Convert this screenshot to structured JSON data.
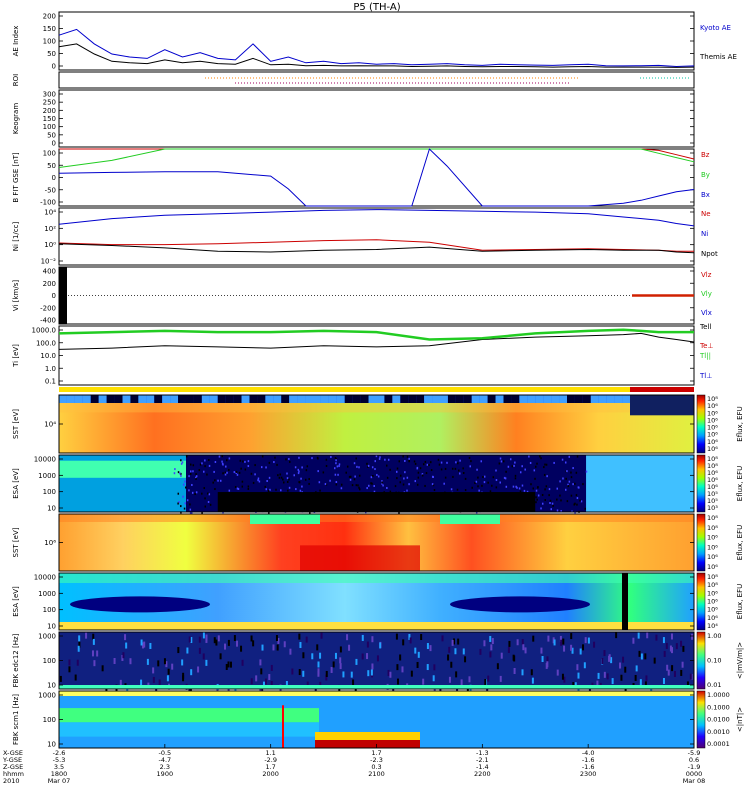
{
  "title": "P5 (TH-A)",
  "right_labels": {
    "ae": [
      "Kyoto AE",
      "Themis AE"
    ],
    "bfit": [
      "Bz",
      "By",
      "Bx"
    ],
    "density": [
      "Ne",
      "Ni",
      "Npot"
    ],
    "velocity": [
      "Vlz",
      "Vly",
      "Vlx"
    ],
    "temperature": [
      "Tell",
      "Te⊥",
      "Tl||",
      "Tl⊥"
    ]
  },
  "colorbars": {
    "sst_e": [
      "10⁸",
      "10⁶",
      "10⁶",
      "10⁶",
      "10⁶",
      "10⁶",
      "10⁶",
      "10⁶"
    ],
    "sst_e_label": "Eflux, EFU",
    "esa_e": [
      "10⁸",
      "10⁸",
      "10⁶",
      "10⁶",
      "10⁶",
      "10⁵",
      "10⁵",
      "10³"
    ],
    "esa_e_label": "Eflux, EFU",
    "sst_i": [
      "10⁸",
      "10⁸",
      "10⁶",
      "10⁶",
      "10⁶",
      "10⁶"
    ],
    "sst_i_label": "Eflux, EFU",
    "esa_i": [
      "10⁸",
      "10⁸",
      "10⁶",
      "10⁶",
      "10⁶",
      "10⁶",
      "10⁴"
    ],
    "esa_i_label": "Eflux, EFU",
    "fbk_b": [
      "1.00",
      "0.10",
      "0.01"
    ],
    "fbk_b_label": "<|mV/m|>",
    "fbk_e": [
      "1.0000",
      "0.1000",
      "0.0100",
      "0.0010",
      "0.0001"
    ],
    "fbk_e_label": "<|nT|>"
  },
  "chart_data": [
    {
      "panel": "AE Index",
      "type": "line",
      "ylabel": "AE Index",
      "yticks": [
        "200",
        "150",
        "100",
        "50",
        "0"
      ],
      "ylim": [
        0,
        200
      ],
      "x": [
        1800,
        1810,
        1820,
        1830,
        1840,
        1850,
        1900,
        1910,
        1920,
        1930,
        1940,
        1950,
        2000,
        2010,
        2020,
        2030,
        2040,
        2050,
        2100,
        2110,
        2120,
        2130,
        2140,
        2150,
        2200,
        2210,
        2220,
        2230,
        2240,
        2250,
        2300,
        2310,
        2320,
        2330,
        2340,
        2350,
        2400
      ],
      "series": [
        {
          "name": "Kyoto AE",
          "values": [
            120,
            140,
            90,
            55,
            45,
            40,
            70,
            45,
            60,
            40,
            35,
            90,
            30,
            45,
            25,
            30,
            22,
            25,
            20,
            22,
            18,
            20,
            22,
            18,
            16,
            20,
            18,
            17,
            16,
            18,
            20,
            15,
            14,
            15,
            16,
            12,
            14
          ]
        },
        {
          "name": "Themis AE",
          "values": [
            80,
            90,
            55,
            30,
            25,
            22,
            35,
            25,
            30,
            22,
            20,
            40,
            18,
            20,
            15,
            16,
            14,
            15,
            14,
            14,
            12,
            13,
            14,
            12,
            11,
            12,
            12,
            11,
            10,
            11,
            12,
            10,
            10,
            10,
            10,
            9,
            10
          ]
        }
      ]
    },
    {
      "panel": "ROI",
      "type": "line",
      "ylabel": "ROI"
    },
    {
      "panel": "Keogram",
      "type": "line",
      "ylabel": "Keogram",
      "yticks": [
        "300",
        "250",
        "200",
        "150",
        "100",
        "50",
        "0"
      ],
      "ylim": [
        0,
        300
      ]
    },
    {
      "panel": "B_FIT",
      "type": "line",
      "ylabel": "B FIT GSE [nT]",
      "yticks": [
        "100",
        "50",
        "0",
        "-50",
        "-100"
      ],
      "ylim": [
        -100,
        100
      ],
      "x": [
        1800,
        1830,
        1900,
        1930,
        2000,
        2010,
        2020,
        2030,
        2040,
        2100,
        2110,
        2120,
        2130,
        2140,
        2200,
        2230,
        2300,
        2320,
        2330,
        2340,
        2350,
        2400
      ],
      "series": [
        {
          "name": "Bz",
          "values": [
            100,
            100,
            100,
            100,
            100,
            100,
            100,
            100,
            100,
            100,
            100,
            100,
            100,
            100,
            100,
            100,
            100,
            100,
            100,
            95,
            80,
            65
          ]
        },
        {
          "name": "By",
          "values": [
            35,
            60,
            100,
            100,
            100,
            100,
            100,
            100,
            100,
            100,
            100,
            100,
            100,
            100,
            100,
            100,
            100,
            100,
            100,
            85,
            70,
            55
          ]
        },
        {
          "name": "Bx",
          "values": [
            15,
            18,
            20,
            20,
            5,
            -40,
            -100,
            -100,
            -100,
            -100,
            -100,
            -100,
            100,
            40,
            -100,
            -100,
            -100,
            -90,
            -80,
            -65,
            -50,
            -42
          ]
        }
      ]
    },
    {
      "panel": "Density",
      "type": "line",
      "ylabel": "Ni [1/cc]",
      "yticks": [
        "10⁴",
        "10²",
        "10⁰",
        "10⁻²"
      ],
      "ylim": [
        -2.5,
        4.5
      ],
      "x": [
        1800,
        1830,
        1900,
        1930,
        2000,
        2030,
        2100,
        2130,
        2200,
        2230,
        2300,
        2320,
        2340,
        2350,
        2400
      ],
      "series": [
        {
          "name": "Ne",
          "values": [
            0.2,
            0.0,
            0.0,
            0.1,
            0.3,
            0.5,
            0.6,
            0.3,
            -0.7,
            -0.6,
            -0.5,
            -0.6,
            -0.7,
            -0.8,
            -0.8
          ]
        },
        {
          "name": "Ni",
          "values": [
            2.5,
            3.2,
            3.6,
            3.8,
            4.0,
            4.2,
            4.3,
            4.2,
            4.1,
            4.0,
            3.8,
            3.4,
            3.0,
            2.6,
            2.3
          ]
        },
        {
          "name": "Npot",
          "values": [
            0.1,
            -0.1,
            -0.4,
            -0.8,
            -0.9,
            -0.7,
            -0.6,
            -0.3,
            -0.8,
            -0.7,
            -0.6,
            -0.7,
            -0.7,
            -0.9,
            -1.0
          ]
        }
      ]
    },
    {
      "panel": "Velocity",
      "type": "line",
      "ylabel": "Vi [km/s]",
      "yticks": [
        "400",
        "200",
        "0",
        "-200",
        "-400"
      ],
      "ylim": [
        -500,
        500
      ],
      "x": [
        2320,
        2330,
        2340,
        2350,
        2400
      ],
      "series": [
        {
          "name": "Vlz",
          "values": [
            0,
            5,
            -5,
            3,
            0
          ]
        },
        {
          "name": "Vly",
          "values": [
            0,
            0,
            0,
            0,
            0
          ]
        },
        {
          "name": "Vlx",
          "values": [
            0,
            0,
            0,
            0,
            0
          ]
        }
      ]
    },
    {
      "panel": "Temperature",
      "type": "line",
      "ylabel": "Ti [eV]",
      "yticks": [
        "1000.0",
        "100.0",
        "10.0",
        "1.0",
        "0.1"
      ],
      "ylim": [
        -1.3,
        3.5
      ],
      "x": [
        1800,
        1830,
        1900,
        1930,
        2000,
        2030,
        2100,
        2130,
        2200,
        2230,
        2300,
        2320,
        2330,
        2340,
        2350,
        2400
      ],
      "series": [
        {
          "name": "Tell",
          "values": [
            1.6,
            1.7,
            1.9,
            1.8,
            1.7,
            1.9,
            1.8,
            1.9,
            2.4,
            2.6,
            2.7,
            2.8,
            2.9,
            2.6,
            2.4,
            2.2
          ]
        },
        {
          "name": "Tl||",
          "values": [
            2.9,
            3.0,
            3.1,
            3.0,
            3.0,
            3.1,
            3.0,
            2.4,
            2.5,
            2.9,
            3.1,
            3.2,
            3.1,
            3.0,
            3.0,
            3.0
          ]
        }
      ]
    },
    {
      "panel": "SST electrons",
      "type": "heatmap",
      "ylabel": "SST [eV]",
      "yticks": [
        "10⁴"
      ]
    },
    {
      "panel": "ESA electrons",
      "type": "heatmap",
      "ylabel": "ESA [eV]",
      "yticks": [
        "10000",
        "1000",
        "100",
        "10"
      ]
    },
    {
      "panel": "SST ions",
      "type": "heatmap",
      "ylabel": "SST [eV]",
      "yticks": [
        "10⁶"
      ]
    },
    {
      "panel": "ESA ions",
      "type": "heatmap",
      "ylabel": "ESA [eV]",
      "yticks": [
        "10000",
        "1000",
        "100",
        "10"
      ]
    },
    {
      "panel": "FBK edc12",
      "type": "heatmap",
      "ylabel": "FBK edc12 [Hz]",
      "yticks": [
        "1000",
        "100",
        "10"
      ]
    },
    {
      "panel": "FBK scm1",
      "type": "heatmap",
      "ylabel": "FBK scm1 [Hz]",
      "yticks": [
        "1000",
        "100",
        "10"
      ]
    }
  ],
  "x_axis": {
    "row_labels": [
      "X-GSE",
      "Y-GSE",
      "Z-GSE",
      "hhmm",
      "2010"
    ],
    "ticks": [
      {
        "x": [
          "-2.6",
          "-5.3",
          "3.5",
          "1800",
          "Mar 07"
        ]
      },
      {
        "x": [
          "-0.5",
          "-4.7",
          "2.3",
          "1900",
          ""
        ]
      },
      {
        "x": [
          "1.1",
          "-2.9",
          "1.7",
          "2000",
          ""
        ]
      },
      {
        "x": [
          "1.7",
          "-2.3",
          "0.3",
          "2100",
          ""
        ]
      },
      {
        "x": [
          "-1.3",
          "-2.1",
          "-1.4",
          "2200",
          ""
        ]
      },
      {
        "x": [
          "-4.0",
          "-1.6",
          "-1.6",
          "2300",
          ""
        ]
      },
      {
        "x": [
          "-5.9",
          "0.6",
          "-1.9",
          "0000",
          "Mar 08"
        ]
      }
    ]
  },
  "colors": {
    "kyoto": "#0000cc",
    "themis": "#000000",
    "bz": "#cc0000",
    "by": "#22cc22",
    "bx": "#0000cc"
  }
}
